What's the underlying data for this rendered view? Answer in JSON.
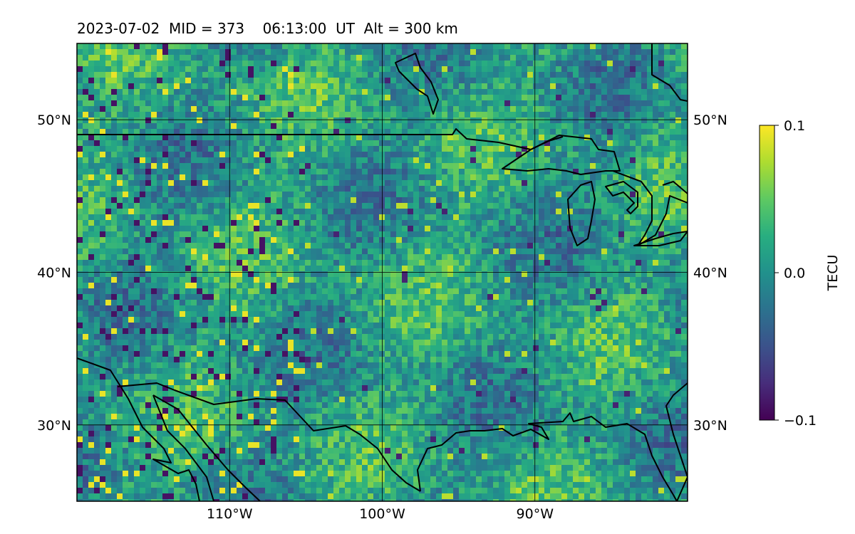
{
  "title": "2023-07-02  MID = 373    06:13:00  UT  Alt = 300 km",
  "map": {
    "projection": "equirectangular",
    "lon_range": [
      -120,
      -80
    ],
    "lat_range": [
      25,
      55
    ],
    "lon_ticks": [
      {
        "value": -110,
        "label": "110°W"
      },
      {
        "value": -100,
        "label": "100°W"
      },
      {
        "value": -90,
        "label": "90°W"
      }
    ],
    "lat_ticks": [
      {
        "value": 50,
        "label": "50°N"
      },
      {
        "value": 40,
        "label": "40°N"
      },
      {
        "value": 30,
        "label": "30°N"
      }
    ],
    "gridlines": true,
    "field": "TEC perturbation (pixelated, noisy)",
    "colormap": "viridis"
  },
  "colorbar": {
    "label": "TECU",
    "min": -0.1,
    "max": 0.1,
    "ticks": [
      {
        "value": 0.1,
        "label": "0.1"
      },
      {
        "value": 0.0,
        "label": "0.0"
      },
      {
        "value": -0.1,
        "label": "−0.1"
      }
    ]
  },
  "colors": {
    "viridis_low": "#440154",
    "viridis_mid": "#21908d",
    "viridis_high": "#fde725",
    "coastline": "#000000",
    "grid": "#000000"
  }
}
